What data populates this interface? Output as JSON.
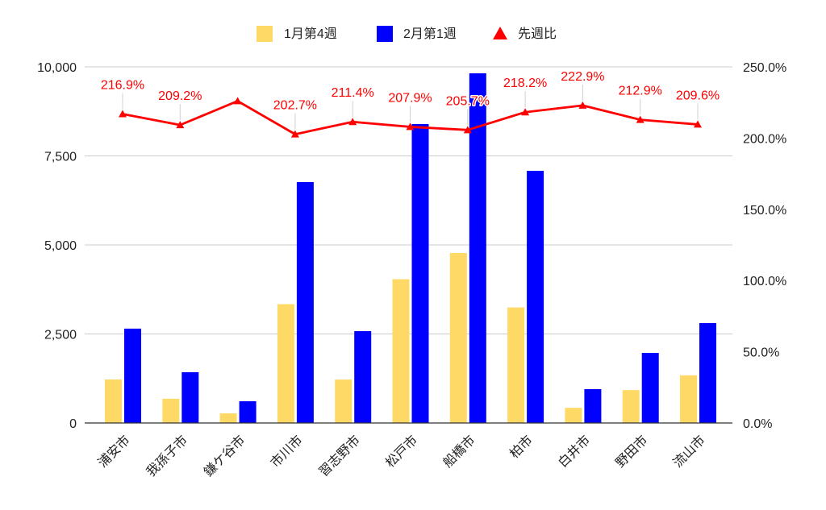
{
  "chart_data": {
    "type": "bar",
    "categories": [
      "浦安市",
      "我孫子市",
      "鎌ケ谷市",
      "市川市",
      "習志野市",
      "松戸市",
      "船橋市",
      "柏市",
      "白井市",
      "野田市",
      "流山市"
    ],
    "series": [
      {
        "name": "1月第4週",
        "type": "bar",
        "axis": "left",
        "color": "#ffd966",
        "values": [
          1222,
          681,
          270,
          3337,
          1220,
          4037,
          4774,
          3245,
          426,
          924,
          1338
        ]
      },
      {
        "name": "2月第1週",
        "type": "bar",
        "axis": "left",
        "color": "#0000ff",
        "values": [
          2650,
          1425,
          610,
          6765,
          2579,
          8394,
          9819,
          7081,
          950,
          1968,
          2805
        ]
      },
      {
        "name": "先週比",
        "type": "line",
        "axis": "right",
        "color": "#ff0000",
        "marker": "triangle",
        "values": [
          216.9,
          209.2,
          226.0,
          202.7,
          211.4,
          207.9,
          205.7,
          218.2,
          222.9,
          212.9,
          209.6
        ],
        "labels": [
          "216.9%",
          "209.2%",
          "",
          "202.7%",
          "211.4%",
          "207.9%",
          "205.7%",
          "218.2%",
          "222.9%",
          "212.9%",
          "209.6%"
        ]
      }
    ],
    "y_left": {
      "range": [
        0,
        10000
      ],
      "tick_values": [
        0,
        2500,
        5000,
        7500,
        10000
      ],
      "tick_labels": [
        "0",
        "2,500",
        "5,000",
        "7,500",
        "10,000"
      ]
    },
    "y_right": {
      "range": [
        0,
        250
      ],
      "tick_values": [
        0,
        50,
        100,
        150,
        200,
        250
      ],
      "tick_labels": [
        "0.0%",
        "50.0%",
        "100.0%",
        "150.0%",
        "200.0%",
        "250.0%"
      ]
    },
    "title": "",
    "xlabel": "",
    "ylabel": "",
    "grid": true,
    "legend": {
      "position": "top"
    }
  }
}
